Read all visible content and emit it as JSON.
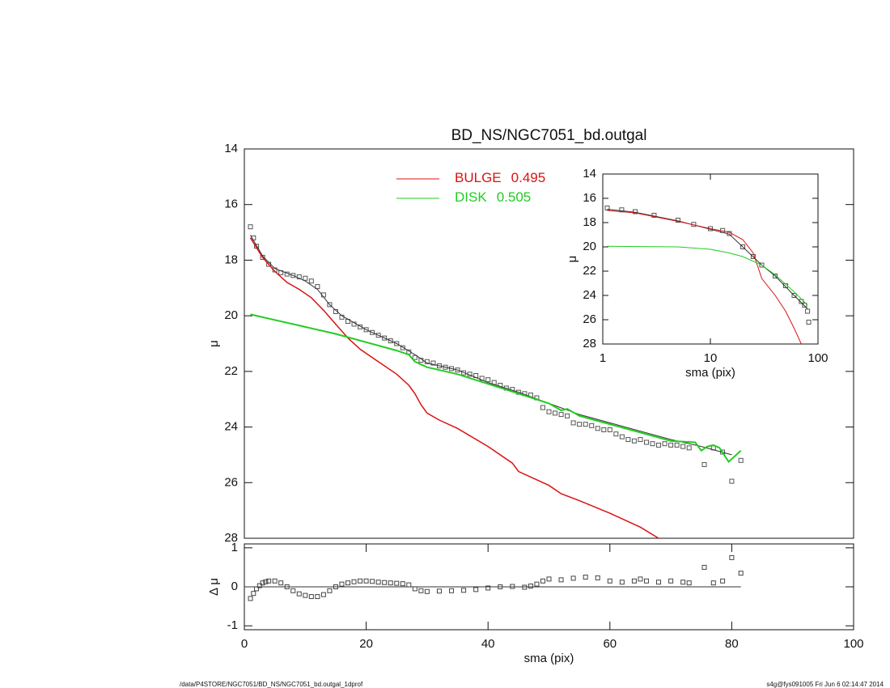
{
  "chart_data": [
    {
      "type": "line",
      "title": "BD_NS/NGC7051_bd.outgal",
      "ylabel": "μ",
      "xlim": [
        0,
        100
      ],
      "ylim": [
        28,
        14
      ],
      "yticks": [
        14,
        16,
        18,
        20,
        22,
        24,
        26,
        28
      ],
      "series": [
        {
          "style": "squares",
          "color": "#555555",
          "x": [
            1,
            1.5,
            2,
            3,
            4,
            5,
            6,
            7,
            8,
            9,
            10,
            11,
            12,
            13,
            14,
            15,
            16,
            17,
            18,
            19,
            20,
            21,
            22,
            23,
            24,
            25,
            26,
            27,
            28,
            29,
            30,
            31,
            32,
            33,
            34,
            35,
            36,
            37,
            38,
            39,
            40,
            41,
            42,
            43,
            44,
            45,
            46,
            47,
            48,
            49,
            50,
            51,
            52,
            53,
            54,
            55,
            56,
            57,
            58,
            59,
            60,
            61,
            62,
            63,
            64,
            65,
            66,
            67,
            68,
            69,
            70,
            71,
            72,
            73,
            75.5,
            77,
            78.5,
            80,
            81.5
          ],
          "values": [
            16.8,
            17.2,
            17.5,
            17.9,
            18.15,
            18.35,
            18.45,
            18.5,
            18.55,
            18.6,
            18.65,
            18.75,
            18.95,
            19.25,
            19.6,
            19.85,
            20.05,
            20.2,
            20.3,
            20.4,
            20.5,
            20.6,
            20.7,
            20.8,
            20.9,
            21.0,
            21.15,
            21.3,
            21.5,
            21.6,
            21.65,
            21.7,
            21.8,
            21.85,
            21.9,
            21.95,
            22.05,
            22.1,
            22.15,
            22.25,
            22.3,
            22.4,
            22.5,
            22.6,
            22.65,
            22.75,
            22.8,
            22.85,
            22.95,
            23.3,
            23.45,
            23.5,
            23.55,
            23.6,
            23.85,
            23.9,
            23.9,
            23.95,
            24.05,
            24.1,
            24.1,
            24.25,
            24.35,
            24.45,
            24.5,
            24.45,
            24.55,
            24.6,
            24.65,
            24.6,
            24.65,
            24.65,
            24.7,
            24.75,
            25.35,
            24.75,
            24.9,
            25.95,
            25.2
          ]
        },
        {
          "style": "line",
          "color": "#333333",
          "width": 1,
          "x": [
            1,
            3,
            5,
            8,
            10,
            12,
            14,
            16,
            20,
            25,
            28,
            30,
            35,
            40,
            45,
            50,
            55,
            60,
            65,
            70,
            75,
            80
          ],
          "values": [
            17.1,
            17.85,
            18.3,
            18.55,
            18.75,
            19.05,
            19.6,
            20.0,
            20.5,
            21.0,
            21.4,
            21.7,
            21.95,
            22.4,
            22.75,
            23.15,
            23.55,
            23.85,
            24.15,
            24.45,
            24.7,
            25.0
          ]
        },
        {
          "style": "line",
          "name": "BULGE",
          "fraction": 0.495,
          "color": "#dd1111",
          "width": 1.5,
          "x": [
            1,
            3,
            5,
            7,
            9,
            11,
            13,
            15,
            17,
            19,
            21,
            23,
            25,
            27,
            28,
            29,
            30,
            32,
            35,
            40,
            44,
            45,
            50,
            52,
            55,
            60,
            65,
            68
          ],
          "values": [
            17.2,
            17.9,
            18.4,
            18.8,
            19.05,
            19.35,
            19.8,
            20.3,
            20.8,
            21.2,
            21.5,
            21.8,
            22.1,
            22.5,
            22.8,
            23.2,
            23.5,
            23.75,
            24.05,
            24.7,
            25.3,
            25.6,
            26.1,
            26.4,
            26.65,
            27.1,
            27.6,
            28.0
          ]
        },
        {
          "style": "line",
          "name": "DISK",
          "fraction": 0.505,
          "color": "#22cc22",
          "width": 2,
          "x": [
            1,
            5,
            10,
            15,
            20,
            25,
            27,
            28,
            30,
            35,
            40,
            45,
            50,
            52,
            53,
            55,
            60,
            65,
            70,
            74,
            75,
            76,
            77,
            78,
            79.5,
            81.5
          ],
          "values": [
            19.95,
            20.15,
            20.4,
            20.65,
            20.95,
            21.25,
            21.4,
            21.65,
            21.85,
            22.1,
            22.45,
            22.8,
            23.15,
            23.4,
            23.35,
            23.6,
            23.9,
            24.2,
            24.5,
            24.55,
            24.85,
            24.7,
            24.65,
            24.75,
            25.25,
            24.85
          ]
        }
      ]
    },
    {
      "type": "line",
      "xlog": true,
      "xlabel": "sma (pix)",
      "ylabel": "μ",
      "xlim": [
        1,
        100
      ],
      "xticks": [
        1,
        10,
        100
      ],
      "ylim": [
        28,
        14
      ],
      "yticks": [
        14,
        16,
        18,
        20,
        22,
        24,
        26,
        28
      ],
      "series": [
        {
          "style": "squares",
          "color": "#555555",
          "x": [
            1.1,
            1.5,
            2,
            3,
            5,
            7,
            10,
            13,
            15,
            20,
            25,
            30,
            40,
            50,
            60,
            70,
            75,
            80,
            82
          ],
          "values": [
            16.8,
            16.95,
            17.1,
            17.4,
            17.8,
            18.15,
            18.5,
            18.65,
            18.9,
            20.0,
            20.8,
            21.5,
            22.4,
            23.2,
            24.0,
            24.5,
            24.8,
            25.3,
            26.2
          ]
        },
        {
          "style": "line",
          "color": "#333333",
          "width": 1,
          "x": [
            1.1,
            2,
            5,
            10,
            15,
            20,
            30,
            40,
            60,
            80
          ],
          "values": [
            16.9,
            17.15,
            17.85,
            18.55,
            18.95,
            20.0,
            21.5,
            22.4,
            24.0,
            25.1
          ]
        },
        {
          "style": "line",
          "color": "#dd1111",
          "width": 1,
          "x": [
            1.1,
            2,
            5,
            10,
            15,
            20,
            25,
            28,
            30,
            40,
            50,
            60,
            70
          ],
          "values": [
            17.0,
            17.2,
            17.9,
            18.5,
            18.8,
            19.4,
            20.5,
            21.8,
            22.6,
            24.0,
            25.3,
            26.7,
            28.0
          ]
        },
        {
          "style": "line",
          "color": "#22cc22",
          "width": 1,
          "x": [
            1.1,
            5,
            10,
            15,
            20,
            30,
            40,
            60,
            80
          ],
          "values": [
            19.95,
            20.0,
            20.2,
            20.5,
            20.8,
            21.5,
            22.3,
            23.7,
            24.8
          ]
        }
      ]
    },
    {
      "type": "scatter",
      "xlabel": "sma (pix)",
      "ylabel": "Δ μ",
      "xlim": [
        0,
        100
      ],
      "xticks": [
        0,
        20,
        40,
        60,
        80,
        100
      ],
      "ylim": [
        -1.1,
        1.1
      ],
      "yticks": [
        -1,
        0,
        1
      ],
      "series": [
        {
          "style": "squares",
          "color": "#444444",
          "x": [
            1,
            1.5,
            2,
            2.5,
            3,
            3.5,
            4,
            5,
            6,
            7,
            8,
            9,
            10,
            11,
            12,
            13,
            14,
            15,
            16,
            17,
            18,
            19,
            20,
            21,
            22,
            23,
            24,
            25,
            26,
            27,
            28,
            29,
            30,
            32,
            34,
            36,
            38,
            40,
            42,
            44,
            46,
            47,
            48,
            49,
            50,
            52,
            54,
            56,
            58,
            60,
            62,
            64,
            65,
            66,
            68,
            70,
            72,
            73,
            75.5,
            77,
            78.5,
            80,
            81.5
          ],
          "values": [
            -0.3,
            -0.17,
            -0.05,
            0.03,
            0.1,
            0.13,
            0.15,
            0.15,
            0.1,
            0.0,
            -0.1,
            -0.18,
            -0.22,
            -0.25,
            -0.25,
            -0.2,
            -0.1,
            0.0,
            0.07,
            0.1,
            0.13,
            0.15,
            0.15,
            0.14,
            0.12,
            0.11,
            0.1,
            0.09,
            0.08,
            0.05,
            -0.05,
            -0.1,
            -0.12,
            -0.11,
            -0.1,
            -0.09,
            -0.07,
            -0.03,
            0.0,
            0.01,
            -0.01,
            0.02,
            0.07,
            0.15,
            0.2,
            0.18,
            0.22,
            0.25,
            0.23,
            0.15,
            0.12,
            0.15,
            0.2,
            0.15,
            0.12,
            0.15,
            0.12,
            0.1,
            0.5,
            0.1,
            0.15,
            0.75,
            0.35
          ]
        }
      ]
    }
  ],
  "footer": {
    "left": "/data/P4STORE/NGC7051/BD_NS/NGC7051_bd.outgal_1dprof",
    "right": "s4g@fys091005  Fri Jun  6 02:14:47 2014"
  }
}
